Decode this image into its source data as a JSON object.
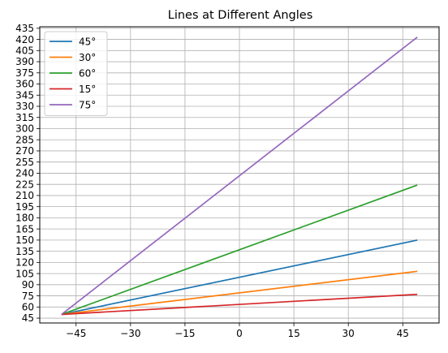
{
  "chart_data": {
    "type": "line",
    "title": "Lines at Different Angles",
    "xlabel": "",
    "ylabel": "",
    "xlim": [
      -55,
      55
    ],
    "ylim": [
      38.5,
      437
    ],
    "xticks": [
      "−45",
      "−30",
      "−15",
      "0",
      "15",
      "30",
      "45"
    ],
    "xtick_values": [
      -45,
      -30,
      -15,
      0,
      15,
      30,
      45
    ],
    "ytick_values": [
      45,
      60,
      75,
      90,
      105,
      120,
      135,
      150,
      165,
      180,
      195,
      210,
      225,
      240,
      255,
      270,
      285,
      300,
      315,
      330,
      345,
      360,
      375,
      390,
      405,
      420,
      435
    ],
    "yticks": [
      "45",
      "60",
      "75",
      "90",
      "105",
      "120",
      "135",
      "150",
      "165",
      "180",
      "195",
      "210",
      "225",
      "240",
      "255",
      "270",
      "285",
      "300",
      "315",
      "330",
      "345",
      "360",
      "375",
      "390",
      "405",
      "420",
      "435"
    ],
    "grid": true,
    "legend_position": "upper-left",
    "series": [
      {
        "name": "45°",
        "color": "#1f77b4",
        "x": [
          -49,
          49
        ],
        "y": [
          50,
          150
        ]
      },
      {
        "name": "30°",
        "color": "#ff7f0e",
        "x": [
          -49,
          49
        ],
        "y": [
          50,
          108
        ]
      },
      {
        "name": "60°",
        "color": "#2ca02c",
        "x": [
          -49,
          49
        ],
        "y": [
          50,
          224
        ]
      },
      {
        "name": "15°",
        "color": "#d62728",
        "x": [
          -49,
          49
        ],
        "y": [
          50,
          77
        ]
      },
      {
        "name": "75°",
        "color": "#9467bd",
        "x": [
          -49,
          49
        ],
        "y": [
          50,
          423
        ]
      }
    ]
  }
}
